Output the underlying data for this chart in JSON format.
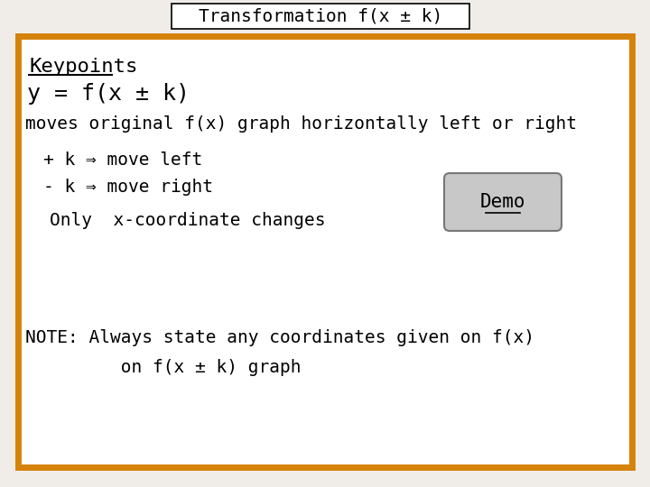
{
  "title": "Transformation f(x ± k)",
  "background_color": "#f0ede8",
  "board_bg": "#ffffff",
  "board_border_color": "#D4820A",
  "board_border_lw": 5,
  "title_box_color": "#ffffff",
  "title_box_border": "#000000",
  "title_fontsize": 14,
  "content_fontsize": 15,
  "small_fontsize": 14,
  "keypoints_label": "Keypoints",
  "line1": "y = f(x ± k)",
  "line2": "moves original f(x) graph horizontally left or right",
  "line3": "+ k ⇒ move left",
  "line4": "- k ⇒ move right",
  "line5": "Only  x-coordinate changes",
  "demo_label": "Demo",
  "note1": "NOTE: Always state any coordinates given on f(x)",
  "note2": "         on f(x ± k) graph",
  "font_family": "DejaVu Sans Mono"
}
